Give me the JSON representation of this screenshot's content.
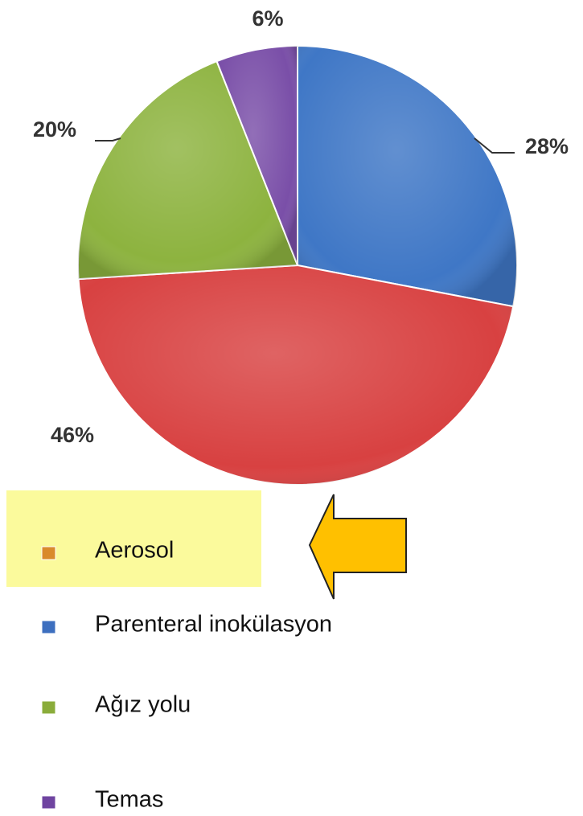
{
  "chart_data": {
    "type": "pie",
    "values": [
      28,
      46,
      20,
      6
    ],
    "value_labels": [
      "28%",
      "46%",
      "20%",
      "6%"
    ],
    "colors": [
      "#3f77c6",
      "#d84141",
      "#8db33f",
      "#7a4fa8"
    ],
    "legend": [
      {
        "name": "Aerosol",
        "color": "#d98a2b"
      },
      {
        "name": "Parenteral inokülasyon",
        "color": "#3d6fbf"
      },
      {
        "name": "Ağız yolu",
        "color": "#8aac3a"
      },
      {
        "name": "Temas",
        "color": "#6f44a0"
      }
    ]
  }
}
